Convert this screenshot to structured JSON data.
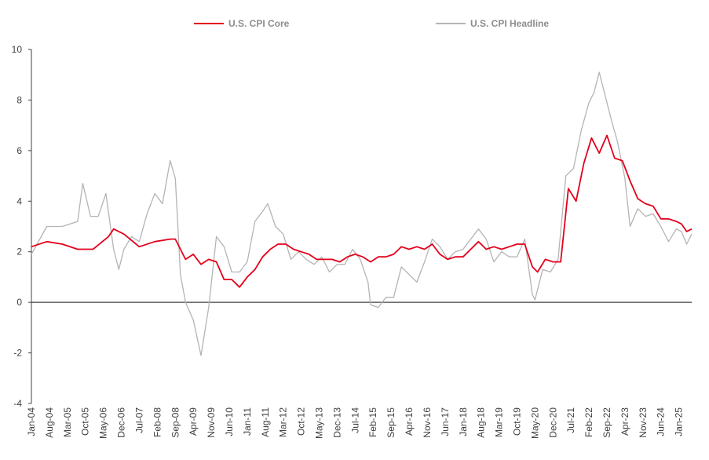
{
  "chart_data": {
    "type": "line",
    "title": "",
    "xlabel": "",
    "ylabel": "",
    "ylim": [
      -4,
      10
    ],
    "yticks": [
      -4,
      -2,
      0,
      2,
      4,
      6,
      8,
      10
    ],
    "xticks": [
      "Jan-04",
      "Aug-04",
      "Mar-05",
      "Oct-05",
      "May-06",
      "Dec-06",
      "Jul-07",
      "Feb-08",
      "Sep-08",
      "Apr-09",
      "Nov-09",
      "Jun-10",
      "Jan-11",
      "Aug-11",
      "Mar-12",
      "Oct-12",
      "May-13",
      "Dec-13",
      "Jul-14",
      "Feb-15",
      "Sep-15",
      "Apr-16",
      "Nov-16",
      "Jun-17",
      "Jan-18",
      "Aug-18",
      "Mar-19",
      "Oct-19",
      "May-20",
      "Dec-20",
      "Jul-21",
      "Feb-22",
      "Sep-22",
      "Apr-23",
      "Nov-23",
      "Jun-24",
      "Jan-25"
    ],
    "xrange": [
      "Jan-04",
      "Jun-25"
    ],
    "legend_position": "top-center",
    "series": [
      {
        "name": "U.S. CPI Core",
        "color": "#e3001b",
        "points": [
          [
            "Jan-04",
            2.2
          ],
          [
            "Jul-04",
            2.4
          ],
          [
            "Jan-05",
            2.3
          ],
          [
            "Jul-05",
            2.1
          ],
          [
            "Jan-06",
            2.1
          ],
          [
            "Jul-06",
            2.6
          ],
          [
            "Sep-06",
            2.9
          ],
          [
            "Jan-07",
            2.7
          ],
          [
            "Jul-07",
            2.2
          ],
          [
            "Jan-08",
            2.4
          ],
          [
            "Jul-08",
            2.5
          ],
          [
            "Sep-08",
            2.5
          ],
          [
            "Jan-09",
            1.7
          ],
          [
            "Apr-09",
            1.9
          ],
          [
            "Jul-09",
            1.5
          ],
          [
            "Oct-09",
            1.7
          ],
          [
            "Jan-10",
            1.6
          ],
          [
            "Apr-10",
            0.9
          ],
          [
            "Jul-10",
            0.9
          ],
          [
            "Oct-10",
            0.6
          ],
          [
            "Jan-11",
            1.0
          ],
          [
            "Apr-11",
            1.3
          ],
          [
            "Jul-11",
            1.8
          ],
          [
            "Oct-11",
            2.1
          ],
          [
            "Jan-12",
            2.3
          ],
          [
            "Apr-12",
            2.3
          ],
          [
            "Jul-12",
            2.1
          ],
          [
            "Oct-12",
            2.0
          ],
          [
            "Jan-13",
            1.9
          ],
          [
            "Apr-13",
            1.7
          ],
          [
            "Jul-13",
            1.7
          ],
          [
            "Oct-13",
            1.7
          ],
          [
            "Jan-14",
            1.6
          ],
          [
            "Apr-14",
            1.8
          ],
          [
            "Jul-14",
            1.9
          ],
          [
            "Oct-14",
            1.8
          ],
          [
            "Jan-15",
            1.6
          ],
          [
            "Apr-15",
            1.8
          ],
          [
            "Jul-15",
            1.8
          ],
          [
            "Oct-15",
            1.9
          ],
          [
            "Jan-16",
            2.2
          ],
          [
            "Apr-16",
            2.1
          ],
          [
            "Jul-16",
            2.2
          ],
          [
            "Oct-16",
            2.1
          ],
          [
            "Jan-17",
            2.3
          ],
          [
            "Apr-17",
            1.9
          ],
          [
            "Jul-17",
            1.7
          ],
          [
            "Oct-17",
            1.8
          ],
          [
            "Jan-18",
            1.8
          ],
          [
            "Apr-18",
            2.1
          ],
          [
            "Jul-18",
            2.4
          ],
          [
            "Oct-18",
            2.1
          ],
          [
            "Jan-19",
            2.2
          ],
          [
            "Apr-19",
            2.1
          ],
          [
            "Jul-19",
            2.2
          ],
          [
            "Oct-19",
            2.3
          ],
          [
            "Jan-20",
            2.3
          ],
          [
            "Apr-20",
            1.4
          ],
          [
            "Jun-20",
            1.2
          ],
          [
            "Sep-20",
            1.7
          ],
          [
            "Dec-20",
            1.6
          ],
          [
            "Mar-21",
            1.6
          ],
          [
            "Jun-21",
            4.5
          ],
          [
            "Sep-21",
            4.0
          ],
          [
            "Dec-21",
            5.5
          ],
          [
            "Mar-22",
            6.5
          ],
          [
            "Jun-22",
            5.9
          ],
          [
            "Sep-22",
            6.6
          ],
          [
            "Dec-22",
            5.7
          ],
          [
            "Mar-23",
            5.6
          ],
          [
            "Jun-23",
            4.8
          ],
          [
            "Sep-23",
            4.1
          ],
          [
            "Dec-23",
            3.9
          ],
          [
            "Mar-24",
            3.8
          ],
          [
            "Jun-24",
            3.3
          ],
          [
            "Sep-24",
            3.3
          ],
          [
            "Dec-24",
            3.2
          ],
          [
            "Feb-25",
            3.1
          ],
          [
            "Apr-25",
            2.8
          ],
          [
            "Jun-25",
            2.9
          ]
        ]
      },
      {
        "name": "U.S. CPI Headline",
        "color": "#b4b4b4",
        "points": [
          [
            "Jan-04",
            1.9
          ],
          [
            "Jul-04",
            3.0
          ],
          [
            "Jan-05",
            3.0
          ],
          [
            "Jul-05",
            3.2
          ],
          [
            "Sep-05",
            4.7
          ],
          [
            "Dec-05",
            3.4
          ],
          [
            "Mar-06",
            3.4
          ],
          [
            "Jun-06",
            4.3
          ],
          [
            "Sep-06",
            2.1
          ],
          [
            "Nov-06",
            1.3
          ],
          [
            "Jan-07",
            2.1
          ],
          [
            "Apr-07",
            2.6
          ],
          [
            "Jul-07",
            2.4
          ],
          [
            "Oct-07",
            3.5
          ],
          [
            "Jan-08",
            4.3
          ],
          [
            "Apr-08",
            3.9
          ],
          [
            "Jul-08",
            5.6
          ],
          [
            "Sep-08",
            4.9
          ],
          [
            "Nov-08",
            1.1
          ],
          [
            "Jan-09",
            0.0
          ],
          [
            "Apr-09",
            -0.7
          ],
          [
            "Jul-09",
            -2.1
          ],
          [
            "Oct-09",
            -0.2
          ],
          [
            "Jan-10",
            2.6
          ],
          [
            "Apr-10",
            2.2
          ],
          [
            "Jul-10",
            1.2
          ],
          [
            "Oct-10",
            1.2
          ],
          [
            "Jan-11",
            1.6
          ],
          [
            "Apr-11",
            3.2
          ],
          [
            "Jul-11",
            3.6
          ],
          [
            "Sep-11",
            3.9
          ],
          [
            "Dec-11",
            3.0
          ],
          [
            "Mar-12",
            2.7
          ],
          [
            "Jun-12",
            1.7
          ],
          [
            "Sep-12",
            2.0
          ],
          [
            "Dec-12",
            1.7
          ],
          [
            "Mar-13",
            1.5
          ],
          [
            "Jun-13",
            1.8
          ],
          [
            "Sep-13",
            1.2
          ],
          [
            "Dec-13",
            1.5
          ],
          [
            "Mar-14",
            1.5
          ],
          [
            "Jun-14",
            2.1
          ],
          [
            "Sep-14",
            1.7
          ],
          [
            "Dec-14",
            0.8
          ],
          [
            "Jan-15",
            -0.1
          ],
          [
            "Apr-15",
            -0.2
          ],
          [
            "Jul-15",
            0.2
          ],
          [
            "Oct-15",
            0.2
          ],
          [
            "Jan-16",
            1.4
          ],
          [
            "Apr-16",
            1.1
          ],
          [
            "Jul-16",
            0.8
          ],
          [
            "Oct-16",
            1.6
          ],
          [
            "Jan-17",
            2.5
          ],
          [
            "Apr-17",
            2.2
          ],
          [
            "Jul-17",
            1.7
          ],
          [
            "Oct-17",
            2.0
          ],
          [
            "Jan-18",
            2.1
          ],
          [
            "Apr-18",
            2.5
          ],
          [
            "Jul-18",
            2.9
          ],
          [
            "Oct-18",
            2.5
          ],
          [
            "Jan-19",
            1.6
          ],
          [
            "Apr-19",
            2.0
          ],
          [
            "Jul-19",
            1.8
          ],
          [
            "Oct-19",
            1.8
          ],
          [
            "Jan-20",
            2.5
          ],
          [
            "Apr-20",
            0.3
          ],
          [
            "May-20",
            0.1
          ],
          [
            "Aug-20",
            1.3
          ],
          [
            "Nov-20",
            1.2
          ],
          [
            "Feb-21",
            1.7
          ],
          [
            "May-21",
            5.0
          ],
          [
            "Aug-21",
            5.3
          ],
          [
            "Nov-21",
            6.8
          ],
          [
            "Feb-22",
            7.9
          ],
          [
            "Apr-22",
            8.3
          ],
          [
            "Jun-22",
            9.1
          ],
          [
            "Aug-22",
            8.3
          ],
          [
            "Nov-22",
            7.1
          ],
          [
            "Jan-23",
            6.4
          ],
          [
            "Apr-23",
            4.9
          ],
          [
            "Jun-23",
            3.0
          ],
          [
            "Sep-23",
            3.7
          ],
          [
            "Dec-23",
            3.4
          ],
          [
            "Mar-24",
            3.5
          ],
          [
            "Jun-24",
            3.0
          ],
          [
            "Sep-24",
            2.4
          ],
          [
            "Dec-24",
            2.9
          ],
          [
            "Feb-25",
            2.8
          ],
          [
            "Apr-25",
            2.3
          ],
          [
            "Jun-25",
            2.7
          ]
        ]
      }
    ]
  }
}
